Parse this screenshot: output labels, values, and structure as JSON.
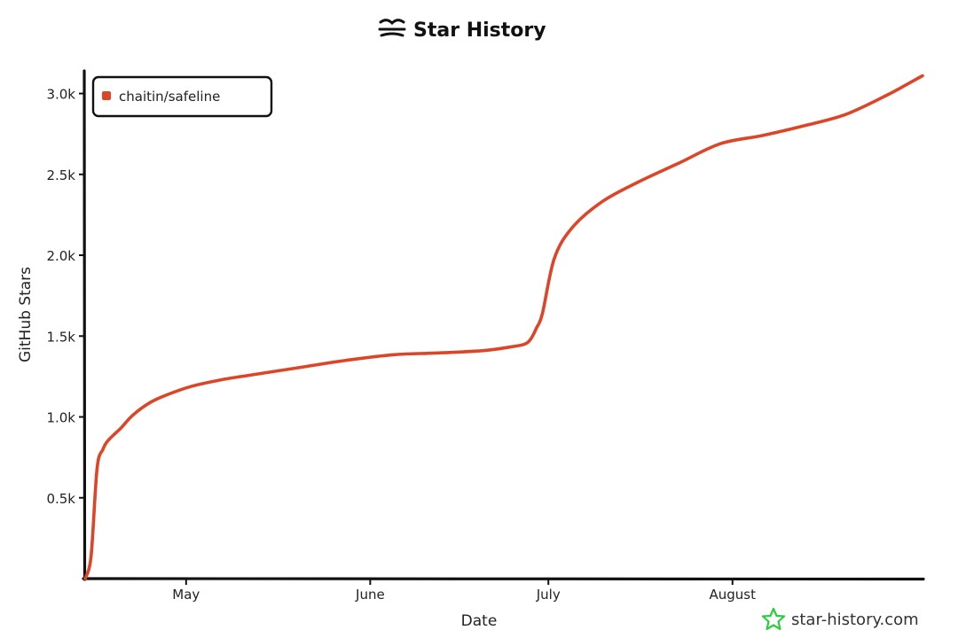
{
  "chart_data": {
    "type": "line",
    "title": "Star History",
    "xlabel": "Date",
    "ylabel": "GitHub Stars",
    "x_ticks": [
      {
        "label": "May",
        "date": "2023-05-01"
      },
      {
        "label": "June",
        "date": "2023-06-01"
      },
      {
        "label": "July",
        "date": "2023-07-01"
      },
      {
        "label": "August",
        "date": "2023-08-01"
      }
    ],
    "y_ticks": [
      {
        "label": "0.5k",
        "value": 500
      },
      {
        "label": "1.0k",
        "value": 1000
      },
      {
        "label": "1.5k",
        "value": 1500
      },
      {
        "label": "2.0k",
        "value": 2000
      },
      {
        "label": "2.5k",
        "value": 2500
      },
      {
        "label": "3.0k",
        "value": 3000
      }
    ],
    "xlim": [
      "2023-04-14",
      "2023-09-02"
    ],
    "ylim": [
      0,
      3140
    ],
    "legend_position": "top-left",
    "grid": false,
    "series": [
      {
        "name": "chaitin/safeline",
        "color": "#dd4528",
        "x": [
          "2023-04-14",
          "2023-04-15",
          "2023-04-16",
          "2023-04-17",
          "2023-04-18",
          "2023-04-20",
          "2023-04-22",
          "2023-04-25",
          "2023-04-28",
          "2023-05-02",
          "2023-05-07",
          "2023-05-12",
          "2023-05-20",
          "2023-05-28",
          "2023-06-05",
          "2023-06-12",
          "2023-06-20",
          "2023-06-25",
          "2023-06-27",
          "2023-06-28",
          "2023-06-29",
          "2023-06-30",
          "2023-07-02",
          "2023-07-05",
          "2023-07-10",
          "2023-07-16",
          "2023-07-23",
          "2023-07-30",
          "2023-08-06",
          "2023-08-13",
          "2023-08-20",
          "2023-08-27",
          "2023-09-02"
        ],
        "y": [
          0,
          140,
          680,
          800,
          860,
          930,
          1010,
          1090,
          1140,
          1190,
          1230,
          1260,
          1305,
          1350,
          1385,
          1395,
          1410,
          1435,
          1450,
          1480,
          1550,
          1640,
          1980,
          2170,
          2330,
          2450,
          2570,
          2690,
          2740,
          2800,
          2870,
          2990,
          3110
        ]
      }
    ]
  },
  "watermark": {
    "text": "star-history.com",
    "icon": "star-outline-icon",
    "icon_color": "#2ecc40"
  },
  "title_icon": "star-history-logo-icon"
}
